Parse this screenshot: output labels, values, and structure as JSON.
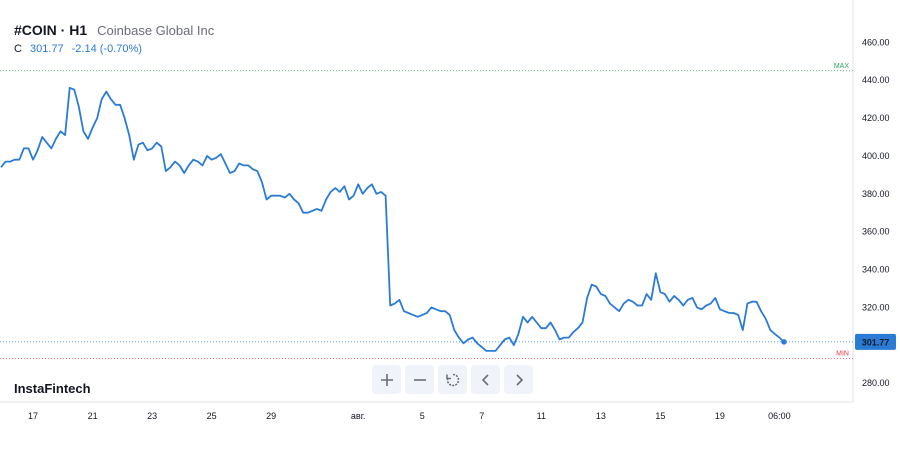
{
  "header": {
    "symbol": "#COIN · H1",
    "company": "Coinbase Global Inc",
    "c_label": "C",
    "last": "301.77",
    "change": "-2.14 (-0.70%)"
  },
  "brand": "InstaFintech",
  "toolbar": {
    "buttons": [
      "zoom-in",
      "zoom-out",
      "reset",
      "scroll-left",
      "scroll-right"
    ]
  },
  "colors": {
    "line": "#2a7bd6",
    "max": "#2e9e5b",
    "min": "#e0414e",
    "price_tag": "#2a7bd6"
  },
  "chart_data": {
    "type": "line",
    "title": "",
    "xlabel": "",
    "ylabel": "",
    "ylim": [
      270,
      475
    ],
    "yticks": [
      280,
      300,
      320,
      340,
      360,
      380,
      400,
      420,
      440,
      460
    ],
    "y_tick_labels": [
      "280.00",
      "300.00",
      "320.00",
      "340.00",
      "360.00",
      "380.00",
      "400.00",
      "420.00",
      "440.00",
      "460.00"
    ],
    "x_tick_labels": [
      "17",
      "21",
      "23",
      "25",
      "29",
      "авг.",
      "5",
      "7",
      "11",
      "13",
      "15",
      "19",
      "06:00"
    ],
    "x_tick_index": [
      7,
      20,
      33,
      46,
      59,
      78,
      92,
      105,
      118,
      131,
      144,
      157,
      170
    ],
    "max_level": 445,
    "max_label": "MAX",
    "min_level": 293,
    "min_label": "MIN",
    "last_value": 301.77,
    "last_label": "301.77",
    "series": [
      {
        "values": [
          394,
          397,
          397,
          398,
          398,
          404,
          404,
          398,
          403,
          410,
          407,
          404,
          409,
          413,
          411,
          436,
          435,
          426,
          413,
          409,
          415,
          420,
          430,
          434,
          430,
          427,
          427,
          420,
          411,
          398,
          406,
          407,
          403,
          404,
          407,
          405,
          392,
          394,
          397,
          395,
          391,
          395,
          398,
          397,
          395,
          400,
          398,
          399,
          401,
          396,
          391,
          392,
          396,
          395,
          395,
          393,
          392,
          386,
          377,
          379,
          379,
          379,
          378,
          380,
          377,
          375,
          370,
          370,
          371,
          372,
          371,
          377,
          381,
          383,
          381,
          384,
          377,
          379,
          385,
          380,
          383,
          385,
          380,
          381,
          379,
          321,
          322,
          324,
          318,
          317,
          316,
          315,
          316,
          317,
          320,
          319,
          318,
          318,
          316,
          308,
          304,
          301,
          303,
          304,
          301,
          299,
          297,
          297,
          297,
          300,
          303,
          304,
          300,
          306,
          315,
          312,
          315,
          312,
          309,
          309,
          312,
          308,
          303,
          304,
          304,
          307,
          309,
          312,
          325,
          332,
          331,
          327,
          326,
          322,
          320,
          318,
          322,
          324,
          323,
          321,
          321,
          327,
          324,
          338,
          328,
          327,
          323,
          326,
          324,
          321,
          324,
          325,
          320,
          319,
          321,
          322,
          325,
          319,
          318,
          317,
          317,
          316,
          308,
          322,
          323,
          323,
          318,
          314,
          308,
          306,
          304,
          301.77
        ]
      }
    ]
  }
}
